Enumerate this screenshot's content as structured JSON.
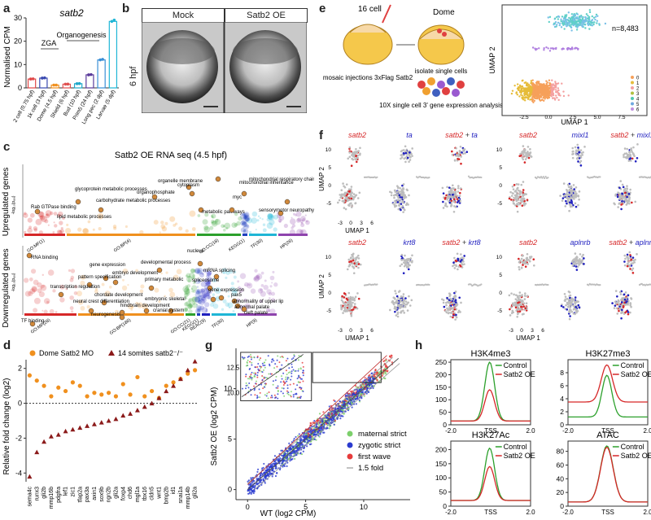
{
  "panel_letters": {
    "a": "a",
    "b": "b",
    "c": "c",
    "d": "d",
    "e": "e",
    "f": "f",
    "g": "g",
    "h": "h"
  },
  "colors": {
    "red": "#d62728",
    "blue": "#1f1fbf",
    "orange": "#f0901e",
    "darkred": "#8b1a1a",
    "green": "#2ca02c",
    "cyan": "#1fb6d6",
    "purple": "#8e44ad",
    "grey": "#bdbdbd"
  },
  "chart_data": [
    {
      "id": "a",
      "type": "bar",
      "title": "satb2",
      "ylabel": "Normalised CPM",
      "ylim": [
        0,
        30
      ],
      "yticks": [
        0,
        10,
        20,
        30
      ],
      "categories": [
        "2 cell (0.75 hpf)",
        "1k cell (3 hpf)",
        "Dome (4.5 hpf)",
        "Shield (6 hpf)",
        "Bud (10 hpf)",
        "Prim5 (24 hpf)",
        "Long pec (2 dpf)",
        "Larvae (5 dpf)"
      ],
      "values": [
        3.8,
        4.2,
        1.2,
        1.6,
        1.8,
        5.6,
        12.0,
        28.5
      ],
      "bar_colors": [
        "#e04848",
        "#3a4ab0",
        "#f0901e",
        "#e05050",
        "#1fa8c9",
        "#5a3a9a",
        "#3a8fd6",
        "#1fb6d6"
      ],
      "annotations": [
        "ZGA",
        "Organogenesis"
      ]
    },
    {
      "id": "d",
      "type": "scatter",
      "ylabel": "Relative fold change (log2)",
      "ylim": [
        -4.5,
        2.5
      ],
      "yticks": [
        -4,
        -2,
        0,
        2
      ],
      "categories": [
        "sema4c",
        "runx3",
        "gli2b",
        "mmp16b",
        "pdgfra",
        "lef1",
        "zic1",
        "tfap2a",
        "pax3a",
        "axin1",
        "sox9b",
        "ngn2b",
        "gli2a",
        "foxp4",
        "chd6",
        "mgl1a",
        "tbx16",
        "cldn5",
        "wnt1",
        "bmp2b",
        "id1",
        "snai1a",
        "mmp14b",
        "gli2a"
      ],
      "series": [
        {
          "name": "Dome Satb2 MO",
          "values": [
            1.6,
            1.3,
            1.0,
            0.4,
            0.9,
            0.7,
            1.2,
            1.0,
            0.4,
            0.6,
            0.5,
            0.6,
            0.4,
            1.1,
            0.5,
            1.5,
            0.4,
            0.7,
            0.3,
            1.0,
            1.2,
            1.4,
            1.7,
            1.9
          ]
        },
        {
          "name": "14 somites satb2⁻/⁻",
          "values": [
            -4.2,
            -2.8,
            -2.2,
            -1.9,
            -1.8,
            -1.6,
            -1.5,
            -1.4,
            -1.3,
            -1.2,
            -1.1,
            -1.0,
            -0.9,
            -0.7,
            -0.6,
            -0.4,
            -0.2,
            0.0,
            0.3,
            0.7,
            1.0,
            1.4,
            1.9,
            2.4
          ]
        }
      ]
    },
    {
      "id": "g",
      "type": "scatter",
      "xlabel": "WT (log2 CPM)",
      "ylabel": "Satb2 OE (log2 CPM)",
      "xlim": [
        -1,
        14
      ],
      "ylim": [
        -1,
        14
      ],
      "xticks": [
        0,
        5,
        10
      ],
      "yticks": [
        0,
        5,
        10
      ],
      "inset_yticks": [
        10.0,
        12.5
      ],
      "series": [
        {
          "name": "maternal strict",
          "color": "#7ccf6b"
        },
        {
          "name": "zygotic strict",
          "color": "#2b3bcf"
        },
        {
          "name": "first wave",
          "color": "#e63b3b"
        },
        {
          "name": "1.5 fold",
          "color": "#999999"
        }
      ]
    },
    {
      "id": "h1",
      "type": "line",
      "title": "H3K4me3",
      "ylim": [
        0,
        260
      ],
      "yticks": [
        0,
        50,
        100,
        150,
        200,
        250
      ],
      "xticks": [
        "-2.0",
        "TSS",
        "2.0"
      ],
      "series": [
        {
          "name": "Control",
          "color": "#2ca02c",
          "peak": 250,
          "base": 15,
          "width": 0.35
        },
        {
          "name": "Satb2 OE",
          "color": "#d62728",
          "peak": 140,
          "base": 15,
          "width": 0.35
        }
      ]
    },
    {
      "id": "h2",
      "type": "line",
      "title": "H3K27me3",
      "ylim": [
        0,
        10
      ],
      "yticks": [
        0,
        2,
        4,
        6,
        8
      ],
      "xticks": [
        "-2.0",
        "TSS",
        "2.0"
      ],
      "series": [
        {
          "name": "Control",
          "color": "#2ca02c",
          "peak": 7.6,
          "base": 1.2,
          "width": 0.35
        },
        {
          "name": "Satb2 OE",
          "color": "#d62728",
          "peak": 9.2,
          "base": 3.5,
          "width": 0.4
        }
      ]
    },
    {
      "id": "h3",
      "type": "line",
      "title": "H3K27Ac",
      "ylim": [
        0,
        230
      ],
      "yticks": [
        0,
        50,
        100,
        150,
        200
      ],
      "xticks": [
        "-2.0",
        "TSS",
        "2.0"
      ],
      "series": [
        {
          "name": "Control",
          "color": "#2ca02c",
          "peak": 205,
          "base": 20,
          "width": 0.35
        },
        {
          "name": "Satb2 OE",
          "color": "#d62728",
          "peak": 140,
          "base": 20,
          "width": 0.35
        }
      ]
    },
    {
      "id": "h4",
      "type": "line",
      "title": "ATAC",
      "ylim": [
        0,
        95
      ],
      "yticks": [
        0,
        20,
        40,
        60,
        80
      ],
      "xticks": [
        "-2.0",
        "TSS",
        "2.0"
      ],
      "series": [
        {
          "name": "Control",
          "color": "#2ca02c",
          "peak": 88,
          "base": 6,
          "width": 0.45
        },
        {
          "name": "Satb2 OE",
          "color": "#d62728",
          "peak": 86,
          "base": 6,
          "width": 0.45
        }
      ]
    }
  ],
  "panel_a": {
    "zga": "ZGA",
    "organogenesis": "Organogenesis"
  },
  "panel_b": {
    "time": "6 hpf",
    "mock": "Mock",
    "oe": "Satb2 OE"
  },
  "panel_c": {
    "title": "Satb2 OE RNA seq (4.5 hpf)",
    "up_label": "Upregulated genes",
    "down_label": "Downregulated genes",
    "yaxis": "-log₁₀(pₐₒⱼ)",
    "up_terms": [
      "Rab GTPase binding",
      "glycoprotein metabolic processes",
      "lipid metabolic processes",
      "carbohydrate metabolic processes",
      "organophosphate",
      "organelle membrane",
      "cytoplasm",
      "metabolic pathways",
      "myc",
      "mitochondrial inheritance",
      "mitochondrial respiratory chain defects",
      "sensorymotor neuropathy"
    ],
    "down_terms": [
      "RNA binding",
      "gene expression",
      "developmental process",
      "embryo development",
      "pattern specification",
      "primary metabolic",
      "transcription regulation",
      "chordate development",
      "neural crest differentiation",
      "hindbrain development",
      "embryonic skeletal",
      "cranial system",
      "neurogenesis",
      "TF binding",
      "nucleus",
      "mRNA splicing",
      "spliceosome",
      "gene expression",
      "pax5",
      "abnormality of upper lip",
      "abnormal palate",
      "cleft palate"
    ],
    "categories_up": [
      "GO:MF(1)",
      "GO:BP(4)",
      "GO:CC(18)",
      "KEGG(1)",
      "TF(30)",
      "HP(26)"
    ],
    "categories_down": [
      "GO:MF(28)",
      "GO:BP(186)",
      "GO:CC(21)",
      "KEGG(1)",
      "REAC(9)",
      "TF(30)",
      "HP(9)"
    ]
  },
  "panel_e": {
    "step1": "16 cell",
    "step1_desc": "mosaic injections 3xFlag Satb2",
    "step2": "Dome",
    "step2_desc": "isolate single cells",
    "step3_desc": "10X single cell 3' gene expression analysis",
    "n": "n=8,483",
    "xlabel": "UMAP 1",
    "ylabel": "UMAP 2",
    "xticks": [
      "-2.5",
      "0.0",
      "2.5",
      "5.0",
      "7.5"
    ],
    "clusters": [
      "0",
      "1",
      "2",
      "3",
      "4",
      "5",
      "6"
    ]
  },
  "panel_f": {
    "row1": [
      "satb2",
      "ta",
      "satb2 + ta",
      "satb2",
      "mixl1",
      "satb2 + mixl1"
    ],
    "row2": [
      "satb2",
      "krt8",
      "satb2 + krt8",
      "satb2",
      "aplnrb",
      "satb2 + aplnrb"
    ],
    "xlabel": "UMAP 1",
    "ylabel": "UMAP 2",
    "xticks": [
      "-3",
      "0",
      "3",
      "6"
    ],
    "yticks": [
      "10",
      "5",
      "0",
      "-5"
    ]
  },
  "panel_d_legend": {
    "mo": "Dome Satb2 MO",
    "mut": "14 somites satb2⁻/⁻"
  },
  "panel_h_legend": {
    "control": "Control",
    "oe": "Satb2 OE"
  }
}
